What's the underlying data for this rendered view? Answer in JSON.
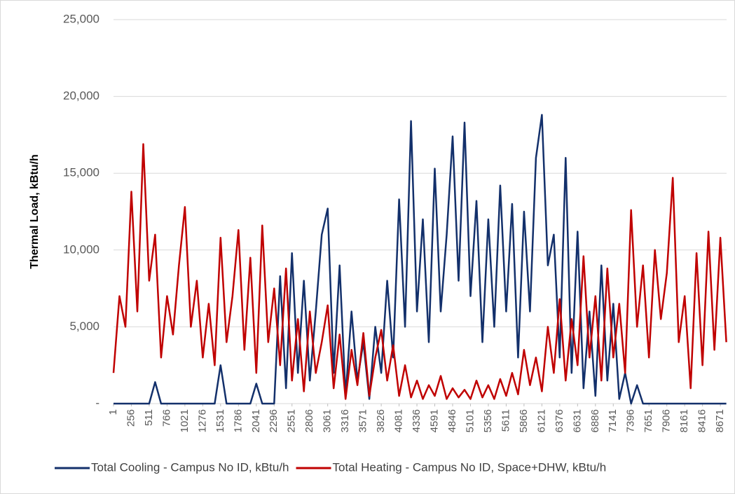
{
  "chart_data": {
    "type": "line",
    "y_label": "Thermal Load, kBtu/h",
    "x": [
      1,
      86,
      171,
      256,
      341,
      426,
      511,
      596,
      681,
      766,
      851,
      936,
      1021,
      1106,
      1191,
      1276,
      1361,
      1446,
      1531,
      1616,
      1701,
      1786,
      1871,
      1956,
      2041,
      2126,
      2211,
      2296,
      2381,
      2466,
      2551,
      2636,
      2721,
      2806,
      2891,
      2976,
      3061,
      3146,
      3231,
      3316,
      3401,
      3486,
      3571,
      3656,
      3741,
      3826,
      3911,
      3996,
      4081,
      4166,
      4251,
      4336,
      4421,
      4506,
      4591,
      4676,
      4761,
      4846,
      4931,
      5016,
      5101,
      5186,
      5271,
      5356,
      5441,
      5526,
      5611,
      5696,
      5781,
      5866,
      5951,
      6036,
      6121,
      6206,
      6291,
      6376,
      6461,
      6546,
      6631,
      6716,
      6801,
      6886,
      6971,
      7056,
      7141,
      7226,
      7311,
      7396,
      7481,
      7566,
      7651,
      7736,
      7821,
      7906,
      7991,
      8076,
      8161,
      8246,
      8331,
      8416,
      8501,
      8586,
      8671,
      8756
    ],
    "series": [
      {
        "name": "Total Cooling -  Campus No ID, kBtu/h",
        "color": "#13306b",
        "values": [
          0,
          0,
          0,
          0,
          0,
          0,
          0,
          1400,
          0,
          0,
          0,
          0,
          0,
          0,
          0,
          0,
          0,
          0,
          2500,
          0,
          0,
          0,
          0,
          0,
          1300,
          0,
          0,
          0,
          8300,
          1000,
          9800,
          2000,
          8000,
          1500,
          6000,
          11000,
          12700,
          2000,
          9000,
          500,
          6000,
          1500,
          4000,
          300,
          5000,
          2000,
          8000,
          3000,
          13300,
          5000,
          18400,
          6000,
          12000,
          4000,
          15300,
          6000,
          11000,
          17400,
          8000,
          18300,
          7000,
          13200,
          4000,
          12000,
          5000,
          14200,
          6000,
          13000,
          3000,
          12500,
          6000,
          16000,
          18800,
          9000,
          11000,
          3000,
          16000,
          2000,
          11200,
          1000,
          6000,
          500,
          9000,
          1500,
          6500,
          300,
          2000,
          0,
          1200,
          0,
          0,
          0,
          0,
          0,
          0,
          0,
          0,
          0,
          0,
          0,
          0,
          0,
          0,
          0
        ]
      },
      {
        "name": "Total Heating - Campus No ID, Space+DHW, kBtu/h",
        "color": "#c00000",
        "values": [
          2000,
          7000,
          5000,
          13800,
          6000,
          16900,
          8000,
          11000,
          3000,
          7000,
          4500,
          9000,
          12800,
          5000,
          8000,
          3000,
          6500,
          2500,
          10800,
          4000,
          7000,
          11300,
          3500,
          9500,
          2000,
          11600,
          4000,
          7500,
          2500,
          8800,
          1500,
          5500,
          800,
          6000,
          2000,
          4000,
          6400,
          1000,
          4500,
          300,
          3500,
          1200,
          4600,
          500,
          3000,
          4800,
          1500,
          3800,
          500,
          2500,
          400,
          1500,
          300,
          1200,
          500,
          1800,
          300,
          1000,
          400,
          900,
          300,
          1500,
          400,
          1200,
          300,
          1600,
          500,
          2000,
          600,
          3500,
          1200,
          3000,
          800,
          5000,
          2000,
          6800,
          1500,
          5500,
          2500,
          9600,
          3000,
          7000,
          1500,
          8800,
          3000,
          6500,
          2000,
          12600,
          5000,
          9000,
          3000,
          10000,
          5500,
          8500,
          14700,
          4000,
          7000,
          1000,
          9800,
          2500,
          11200,
          3500,
          10800,
          4000
        ]
      }
    ],
    "xlim": [
      1,
      8760
    ],
    "xticks": [
      1,
      256,
      511,
      766,
      1021,
      1276,
      1531,
      1786,
      2041,
      2296,
      2551,
      2806,
      3061,
      3316,
      3571,
      3826,
      4081,
      4336,
      4591,
      4846,
      5101,
      5356,
      5611,
      5866,
      6121,
      6376,
      6631,
      6886,
      7141,
      7396,
      7651,
      7906,
      8161,
      8416,
      8671
    ],
    "ylim": [
      0,
      25000
    ],
    "yticks": [
      {
        "value": 0,
        "label": "-"
      },
      {
        "value": 5000,
        "label": "5,000"
      },
      {
        "value": 10000,
        "label": "10,000"
      },
      {
        "value": 15000,
        "label": "15,000"
      },
      {
        "value": 20000,
        "label": "20,000"
      },
      {
        "value": 25000,
        "label": "25,000"
      }
    ],
    "grid": true,
    "legend": "bottom"
  }
}
